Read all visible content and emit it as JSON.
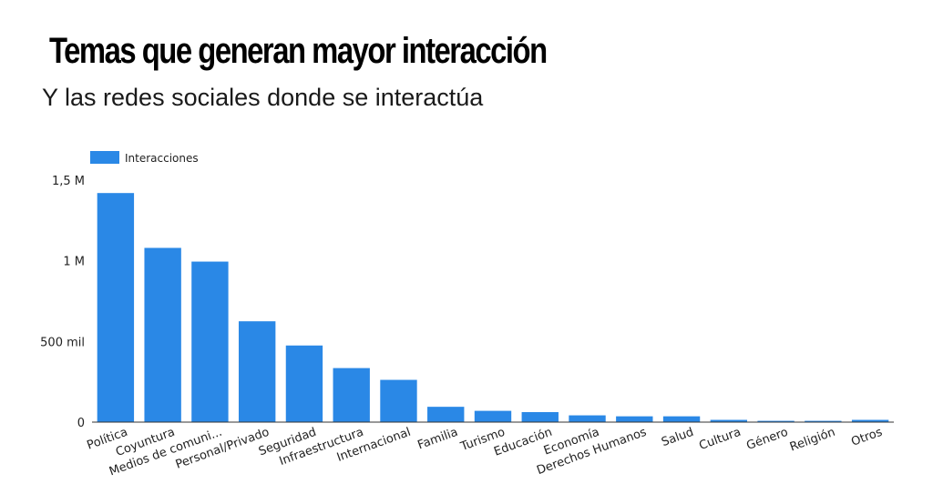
{
  "header": {
    "title": "Temas que generan mayor interacción",
    "subtitle": "Y las redes sociales donde se interactúa"
  },
  "chart_data": {
    "type": "bar",
    "title": "Temas que generan mayor interacción",
    "subtitle": "Y las redes sociales donde se interactúa",
    "xlabel": "",
    "ylabel": "",
    "categories": [
      "Política",
      "Coyuntura",
      "Medios de comuni...",
      "Personal/Privado",
      "Seguridad",
      "Infraestructura",
      "Internacional",
      "Familia",
      "Turismo",
      "Educación",
      "Economía",
      "Derechos Humanos",
      "Salud",
      "Cultura",
      "Género",
      "Religión",
      "Otros"
    ],
    "series": [
      {
        "name": "Interacciones",
        "color": "#2a88e6",
        "values": [
          1420000,
          1080000,
          995000,
          625000,
          475000,
          335000,
          262000,
          95000,
          70000,
          62000,
          42000,
          36000,
          36000,
          14000,
          8000,
          8000,
          14000
        ]
      }
    ],
    "ylim": [
      0,
      1500000
    ],
    "yticks": [
      {
        "value": 0,
        "label": "0"
      },
      {
        "value": 500000,
        "label": "500 mil"
      },
      {
        "value": 1000000,
        "label": "1 M"
      },
      {
        "value": 1500000,
        "label": "1,5 M"
      }
    ],
    "grid": false,
    "legend_position": "top-left"
  }
}
